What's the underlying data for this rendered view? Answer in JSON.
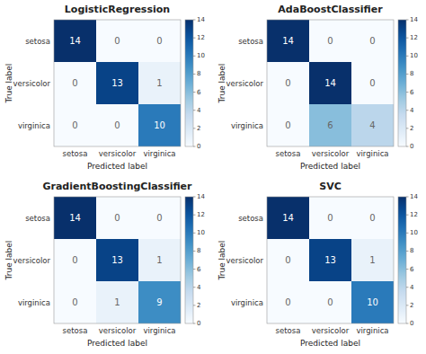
{
  "chart_data": [
    {
      "type": "heatmap",
      "title": "LogisticRegression",
      "xlabel": "Predicted label",
      "ylabel": "True label",
      "x_categories": [
        "setosa",
        "versicolor",
        "virginica"
      ],
      "y_categories": [
        "setosa",
        "versicolor",
        "virginica"
      ],
      "values": [
        [
          14,
          0,
          0
        ],
        [
          0,
          13,
          1
        ],
        [
          0,
          0,
          10
        ]
      ],
      "color": "Blues",
      "color_range": [
        0,
        14
      ],
      "color_ticks": [
        0,
        2,
        4,
        6,
        8,
        10,
        12,
        14
      ],
      "data_labels": true
    },
    {
      "type": "heatmap",
      "title": "AdaBoostClassifier",
      "xlabel": "Predicted label",
      "ylabel": "True label",
      "x_categories": [
        "setosa",
        "versicolor",
        "virginica"
      ],
      "y_categories": [
        "setosa",
        "versicolor",
        "virginica"
      ],
      "values": [
        [
          14,
          0,
          0
        ],
        [
          0,
          14,
          0
        ],
        [
          0,
          6,
          4
        ]
      ],
      "color": "Blues",
      "color_range": [
        0,
        14
      ],
      "color_ticks": [
        0,
        2,
        4,
        6,
        8,
        10,
        12,
        14
      ],
      "data_labels": true
    },
    {
      "type": "heatmap",
      "title": "GradientBoostingClassifier",
      "xlabel": "Predicted label",
      "ylabel": "True label",
      "x_categories": [
        "setosa",
        "versicolor",
        "virginica"
      ],
      "y_categories": [
        "setosa",
        "versicolor",
        "virginica"
      ],
      "values": [
        [
          14,
          0,
          0
        ],
        [
          0,
          13,
          1
        ],
        [
          0,
          1,
          9
        ]
      ],
      "color": "Blues",
      "color_range": [
        0,
        14
      ],
      "color_ticks": [
        0,
        2,
        4,
        6,
        8,
        10,
        12,
        14
      ],
      "data_labels": true
    },
    {
      "type": "heatmap",
      "title": "SVC",
      "xlabel": "Predicted label",
      "ylabel": "True label",
      "x_categories": [
        "setosa",
        "versicolor",
        "virginica"
      ],
      "y_categories": [
        "setosa",
        "versicolor",
        "virginica"
      ],
      "values": [
        [
          14,
          0,
          0
        ],
        [
          0,
          13,
          1
        ],
        [
          0,
          0,
          10
        ]
      ],
      "color": "Blues",
      "color_range": [
        0,
        14
      ],
      "color_ticks": [
        0,
        2,
        4,
        6,
        8,
        10,
        12,
        14
      ],
      "data_labels": true
    }
  ]
}
